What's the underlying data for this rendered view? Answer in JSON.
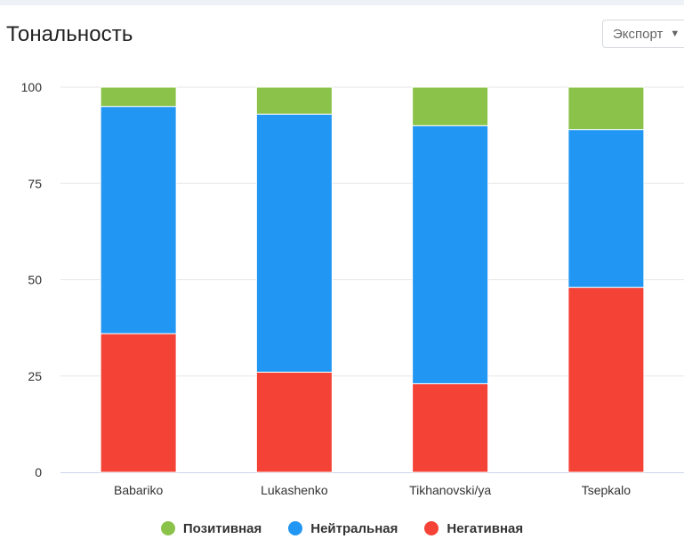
{
  "header": {
    "title": "Тональность",
    "export_label": "Экспорт",
    "export_icon": "caret-down-icon"
  },
  "chart_data": {
    "type": "bar",
    "stacked": true,
    "categories": [
      "Babariko",
      "Lukashenko",
      "Tikhanovski/ya",
      "Tsepkalo"
    ],
    "series": [
      {
        "name": "Негативная",
        "color": "#f44336",
        "values": [
          36,
          26,
          23,
          48
        ]
      },
      {
        "name": "Нейтральная",
        "color": "#2196f3",
        "values": [
          59,
          67,
          67,
          41
        ]
      },
      {
        "name": "Позитивная",
        "color": "#8bc34a",
        "values": [
          5,
          7,
          10,
          11
        ]
      }
    ],
    "title": "Тональность",
    "xlabel": "",
    "ylabel": "",
    "ylim": [
      0,
      100
    ],
    "yticks": [
      "0",
      "25",
      "50",
      "75",
      "100"
    ],
    "grid": true,
    "legend_position": "bottom"
  },
  "legend": [
    {
      "label": "Позитивная",
      "color": "#8bc34a"
    },
    {
      "label": "Нейтральная",
      "color": "#2196f3"
    },
    {
      "label": "Негативная",
      "color": "#f44336"
    }
  ]
}
